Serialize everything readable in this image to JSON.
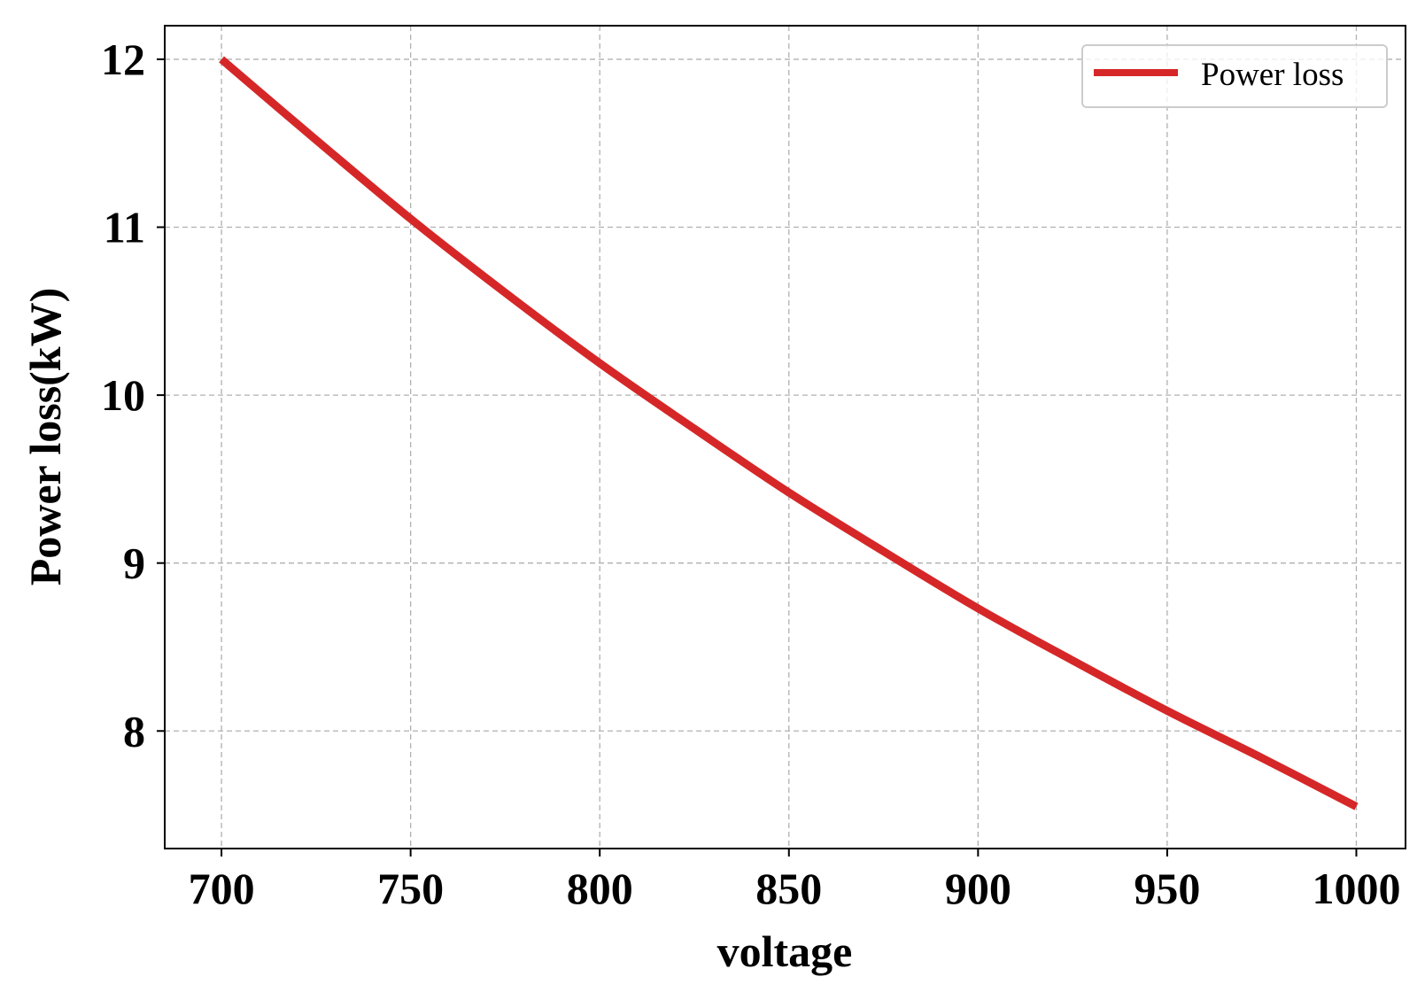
{
  "chart_data": {
    "type": "line",
    "xlabel": "voltage",
    "ylabel": "Power loss(kW)",
    "xlim": [
      685,
      1013
    ],
    "ylim": [
      7.3,
      12.2
    ],
    "xticks": [
      700,
      750,
      800,
      850,
      900,
      950,
      1000
    ],
    "yticks": [
      8,
      9,
      10,
      11,
      12
    ],
    "xtick_labels": [
      "700",
      "750",
      "800",
      "850",
      "900",
      "950",
      "1000"
    ],
    "ytick_labels": [
      "8",
      "9",
      "10",
      "11",
      "12"
    ],
    "grid": true,
    "legend_position": "top-right",
    "series": [
      {
        "name": "Power loss",
        "color": "#d62728",
        "x": [
          700,
          725,
          750,
          775,
          800,
          825,
          850,
          875,
          900,
          925,
          950,
          975,
          1000
        ],
        "y": [
          12.0,
          11.52,
          11.05,
          10.61,
          10.19,
          9.8,
          9.42,
          9.07,
          8.73,
          8.42,
          8.12,
          7.84,
          7.55
        ]
      }
    ]
  }
}
